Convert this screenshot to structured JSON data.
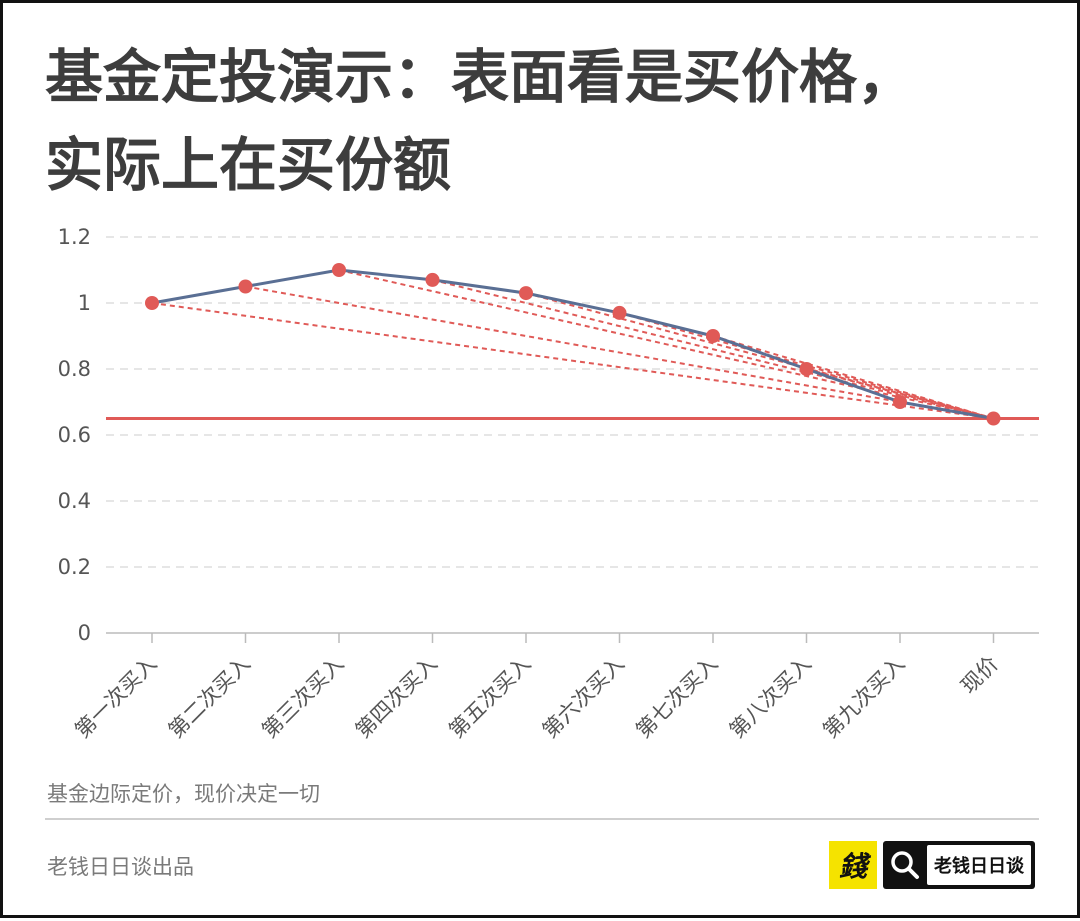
{
  "title": {
    "line1": "基金定投演示：表面看是买价格，",
    "line2": "实际上在买份额"
  },
  "chart_data": {
    "type": "line",
    "categories": [
      "第一次买入",
      "第二次买入",
      "第三次买入",
      "第四次买入",
      "第五次买入",
      "第六次买入",
      "第七次买入",
      "第八次买入",
      "第九次买入",
      "现价"
    ],
    "series": [
      {
        "values": [
          1.0,
          1.05,
          1.1,
          1.07,
          1.03,
          0.97,
          0.9,
          0.8,
          0.7,
          0.65
        ],
        "color": "#5a6f94"
      }
    ],
    "reference_line": {
      "value": 0.65,
      "color": "#e05a57"
    },
    "dashed_lines_to_last_point": true,
    "dashed_color": "#e05a57",
    "marker_color": "#e05a57",
    "yticks": [
      "0",
      "0.2",
      "0.4",
      "0.6",
      "0.8",
      "1",
      "1.2"
    ],
    "ylim": [
      0,
      1.2
    ],
    "grid": true
  },
  "note": "基金边际定价，现价决定一切",
  "producer": "老钱日日谈出品",
  "logo_text": "錢",
  "badge": {
    "icon": "search-icon",
    "label": "老钱日日谈"
  }
}
